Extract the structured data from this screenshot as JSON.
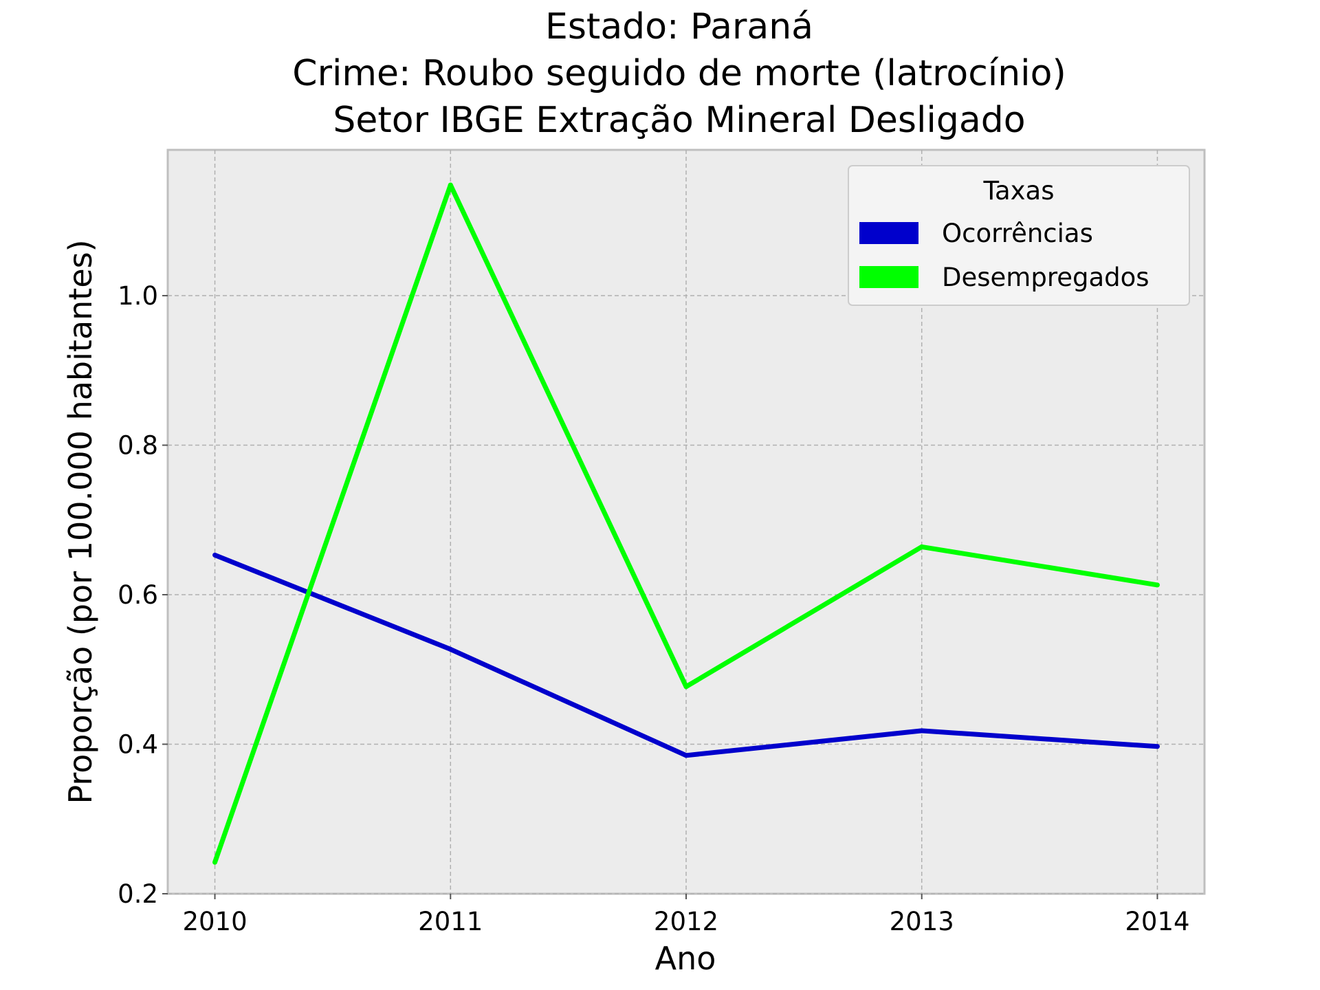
{
  "chart_data": {
    "type": "line",
    "title_lines": [
      "Estado: Paraná",
      "Crime: Roubo seguido de morte (latrocínio)",
      "Setor IBGE  Extração Mineral   Desligado"
    ],
    "xlabel": "Ano",
    "ylabel": "Proporção (por 100.000 habitantes)",
    "x": [
      2010,
      2011,
      2012,
      2013,
      2014
    ],
    "x_tick_labels": [
      "2010",
      "2011",
      "2012",
      "2013",
      "2014"
    ],
    "y_tick_values": [
      0.2,
      0.4,
      0.6,
      0.8,
      1.0
    ],
    "y_tick_labels": [
      "0.2",
      "0.4",
      "0.6",
      "0.8",
      "1.0"
    ],
    "xlim": [
      2009.8,
      2014.2
    ],
    "ylim": [
      0.2,
      1.195
    ],
    "grid": true,
    "background": "#ececec",
    "legend": {
      "title": "Taxas",
      "position": "top-right"
    },
    "series": [
      {
        "name": "Ocorrências",
        "color": "#0000cc",
        "values": [
          0.653,
          0.527,
          0.385,
          0.418,
          0.397
        ]
      },
      {
        "name": "Desempregados",
        "color": "#00ff00",
        "values": [
          0.242,
          1.148,
          0.477,
          0.664,
          0.613
        ]
      }
    ]
  }
}
